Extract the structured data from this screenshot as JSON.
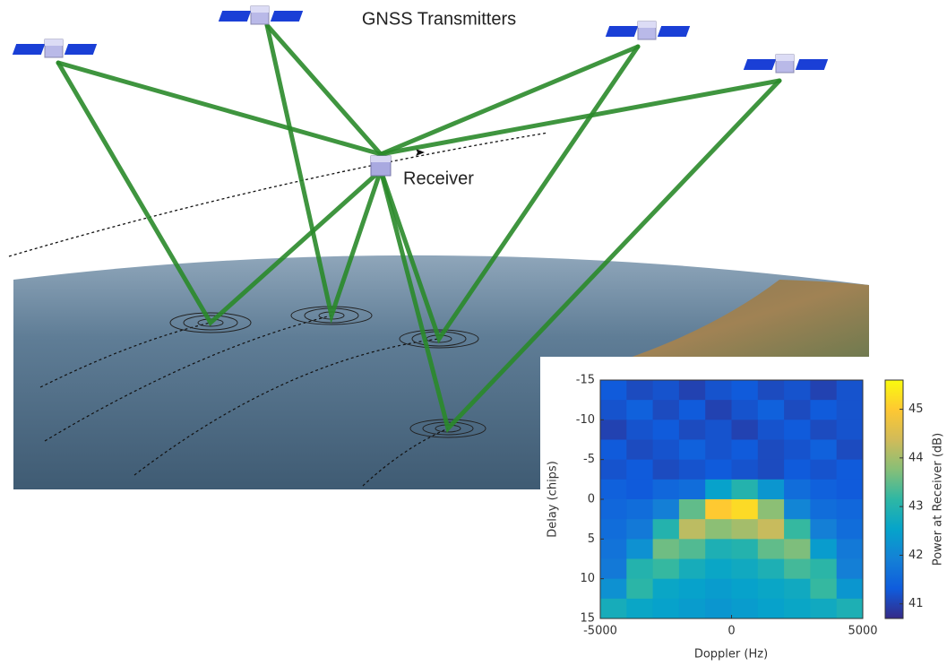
{
  "diagram": {
    "title": "GNSS Transmitters",
    "receiver_label": "Receiver"
  },
  "chart_data": {
    "type": "heatmap",
    "xlabel": "Doppler (Hz)",
    "ylabel": "Delay (chips)",
    "colorbar_label": "Power at Receiver (dB)",
    "xbins": [
      -5000,
      -4000,
      -3000,
      -2000,
      -1000,
      0,
      1000,
      2000,
      3000,
      4000,
      5000
    ],
    "ybins": [
      -15,
      -12.5,
      -10,
      -7.5,
      -5,
      -2.5,
      0,
      2.5,
      5,
      7.5,
      10,
      12.5,
      15
    ],
    "z": [
      [
        41.3,
        41.1,
        41.2,
        41.0,
        41.2,
        41.3,
        41.1,
        41.2,
        41.0,
        41.2
      ],
      [
        41.2,
        41.4,
        41.1,
        41.3,
        41.0,
        41.2,
        41.4,
        41.1,
        41.3,
        41.2
      ],
      [
        41.0,
        41.2,
        41.3,
        41.1,
        41.2,
        41.0,
        41.2,
        41.3,
        41.1,
        41.2
      ],
      [
        41.3,
        41.1,
        41.2,
        41.4,
        41.2,
        41.3,
        41.1,
        41.2,
        41.4,
        41.1
      ],
      [
        41.2,
        41.3,
        41.1,
        41.2,
        41.3,
        41.2,
        41.1,
        41.3,
        41.2,
        41.3
      ],
      [
        41.4,
        41.3,
        41.5,
        41.6,
        42.5,
        43.0,
        42.3,
        41.6,
        41.4,
        41.3
      ],
      [
        41.5,
        41.6,
        41.9,
        43.5,
        45.0,
        45.2,
        43.8,
        42.0,
        41.6,
        41.5
      ],
      [
        41.6,
        41.8,
        43.0,
        44.2,
        43.8,
        44.0,
        44.3,
        43.2,
        41.9,
        41.6
      ],
      [
        41.7,
        42.2,
        43.6,
        43.4,
        42.9,
        43.0,
        43.5,
        43.7,
        42.4,
        41.8
      ],
      [
        41.8,
        43.0,
        43.2,
        42.8,
        42.6,
        42.7,
        42.9,
        43.3,
        43.1,
        41.9
      ],
      [
        42.2,
        43.1,
        42.6,
        42.5,
        42.4,
        42.5,
        42.6,
        42.7,
        43.2,
        42.3
      ],
      [
        42.8,
        42.6,
        42.5,
        42.4,
        42.3,
        42.4,
        42.5,
        42.6,
        42.7,
        42.9
      ]
    ],
    "xlim": [
      -5000,
      5000
    ],
    "xticks": [
      -5000,
      0,
      5000
    ],
    "ylim": [
      -15,
      15
    ],
    "yticks": [
      -15,
      -10,
      -5,
      0,
      5,
      10,
      15
    ],
    "y_inverted": true,
    "clim": [
      40.7,
      45.6
    ],
    "cticks": [
      41,
      42,
      43,
      44,
      45
    ],
    "colormap": [
      "#352a87",
      "#0f5cdd",
      "#1481d6",
      "#06a4ca",
      "#2eb7a4",
      "#87bf77",
      "#d1bb59",
      "#fec832",
      "#f9fb0e"
    ]
  }
}
